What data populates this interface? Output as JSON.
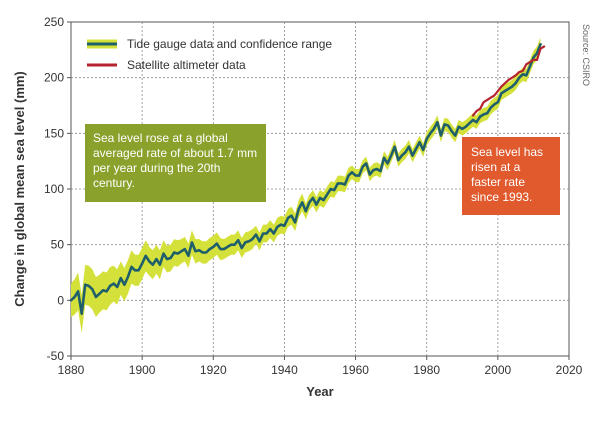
{
  "chart_data": {
    "type": "line",
    "title": "",
    "xlabel": "Year",
    "ylabel": "Change in global mean sea level (mm)",
    "xlim": [
      1880,
      2020
    ],
    "ylim": [
      -50,
      250
    ],
    "x_ticks": [
      1880,
      1900,
      1920,
      1940,
      1960,
      1980,
      2000,
      2020
    ],
    "y_ticks": [
      -50,
      0,
      50,
      100,
      150,
      200,
      250
    ],
    "grid": true,
    "legend_position": "top-left",
    "series": [
      {
        "name": "Tide gauge data and confidence range",
        "color": "#1f5f6b",
        "band_color": "#d4e13a",
        "x": [
          1880,
          1881,
          1882,
          1883,
          1884,
          1885,
          1886,
          1887,
          1888,
          1889,
          1890,
          1891,
          1892,
          1893,
          1894,
          1895,
          1896,
          1897,
          1898,
          1899,
          1900,
          1901,
          1902,
          1903,
          1904,
          1905,
          1906,
          1907,
          1908,
          1909,
          1910,
          1911,
          1912,
          1913,
          1914,
          1915,
          1916,
          1917,
          1918,
          1919,
          1920,
          1921,
          1922,
          1923,
          1924,
          1925,
          1926,
          1927,
          1928,
          1929,
          1930,
          1931,
          1932,
          1933,
          1934,
          1935,
          1936,
          1937,
          1938,
          1939,
          1940,
          1941,
          1942,
          1943,
          1944,
          1945,
          1946,
          1947,
          1948,
          1949,
          1950,
          1951,
          1952,
          1953,
          1954,
          1955,
          1956,
          1957,
          1958,
          1959,
          1960,
          1961,
          1962,
          1963,
          1964,
          1965,
          1966,
          1967,
          1968,
          1969,
          1970,
          1971,
          1972,
          1973,
          1974,
          1975,
          1976,
          1977,
          1978,
          1979,
          1980,
          1981,
          1982,
          1983,
          1984,
          1985,
          1986,
          1987,
          1988,
          1989,
          1990,
          1991,
          1992,
          1993,
          1994,
          1995,
          1996,
          1997,
          1998,
          1999,
          2000,
          2001,
          2002,
          2003,
          2004,
          2005,
          2006,
          2007,
          2008,
          2009,
          2010,
          2011,
          2012
        ],
        "y": [
          0,
          3,
          8,
          -12,
          14,
          13,
          10,
          3,
          6,
          9,
          8,
          13,
          15,
          12,
          20,
          14,
          21,
          30,
          27,
          27,
          33,
          40,
          35,
          32,
          37,
          32,
          42,
          37,
          38,
          43,
          42,
          44,
          46,
          40,
          52,
          44,
          45,
          43,
          43,
          46,
          48,
          51,
          46,
          46,
          48,
          50,
          50,
          54,
          47,
          52,
          53,
          55,
          59,
          53,
          60,
          60,
          64,
          60,
          66,
          68,
          67,
          74,
          76,
          70,
          82,
          88,
          80,
          88,
          92,
          86,
          92,
          90,
          95,
          100,
          99,
          105,
          105,
          104,
          112,
          115,
          112,
          112,
          120,
          123,
          113,
          117,
          118,
          116,
          128,
          123,
          130,
          138,
          126,
          130,
          133,
          138,
          130,
          136,
          142,
          135,
          145,
          150,
          154,
          160,
          148,
          158,
          157,
          152,
          148,
          156,
          154,
          156,
          159,
          162,
          160,
          165,
          167,
          168,
          173,
          176,
          178,
          186,
          188,
          190,
          192,
          195,
          200,
          203,
          202,
          210,
          218,
          222,
          230
        ],
        "band": [
          15,
          16,
          17,
          17,
          18,
          18,
          18,
          18,
          17,
          17,
          17,
          17,
          16,
          16,
          15,
          15,
          15,
          15,
          14,
          14,
          14,
          14,
          13,
          13,
          13,
          13,
          12,
          12,
          12,
          12,
          12,
          11,
          11,
          11,
          11,
          11,
          10,
          10,
          10,
          10,
          10,
          10,
          10,
          9,
          9,
          9,
          9,
          9,
          9,
          9,
          9,
          9,
          8,
          8,
          8,
          8,
          8,
          8,
          8,
          8,
          8,
          8,
          8,
          8,
          8,
          8,
          7,
          7,
          7,
          7,
          7,
          7,
          7,
          7,
          7,
          7,
          7,
          7,
          7,
          6,
          6,
          6,
          6,
          6,
          6,
          6,
          6,
          6,
          6,
          6,
          6,
          6,
          6,
          6,
          6,
          6,
          6,
          6,
          6,
          6,
          6,
          6,
          6,
          6,
          6,
          6,
          6,
          6,
          6,
          6,
          6,
          6,
          6,
          6,
          6,
          6,
          6,
          6,
          6,
          6,
          6,
          6,
          6,
          6,
          6,
          6,
          6,
          6,
          6,
          6,
          6,
          6,
          6
        ]
      },
      {
        "name": "Satellite altimeter data",
        "color": "#b5232e",
        "x": [
          1993,
          1994,
          1995,
          1996,
          1997,
          1998,
          1999,
          2000,
          2001,
          2002,
          2003,
          2004,
          2005,
          2006,
          2007,
          2008,
          2009,
          2010,
          2011,
          2012,
          2013
        ],
        "y": [
          166,
          170,
          172,
          178,
          180,
          182,
          184,
          188,
          192,
          195,
          198,
          200,
          202,
          205,
          206,
          212,
          214,
          216,
          216,
          226,
          228
        ]
      }
    ]
  },
  "annotations": {
    "green_callout": "Sea level rose at a global averaged rate of about 1.7 mm per year during the 20th century.",
    "green_color": "#8aa12c",
    "red_callout": "Sea level has risen at a faster rate since 1993.",
    "red_color": "#e05a2e"
  },
  "source": "Source: CSIRO"
}
